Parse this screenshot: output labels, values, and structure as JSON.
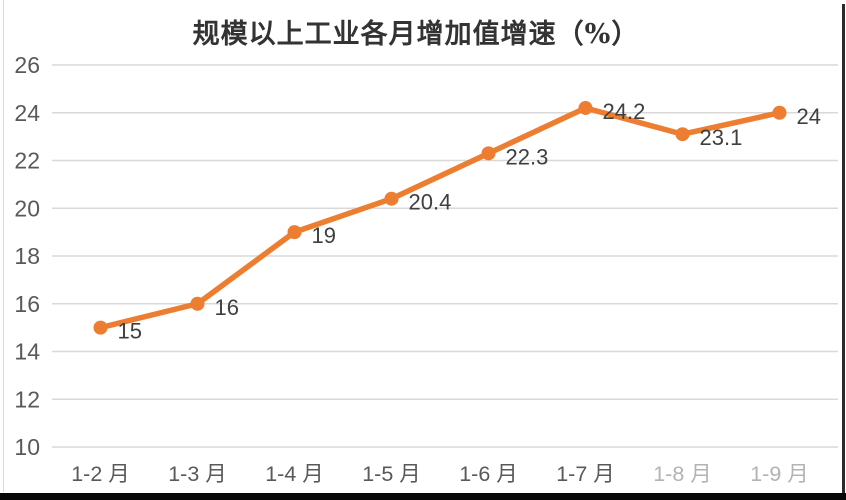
{
  "chart_data": {
    "type": "line",
    "title": "规模以上工业各月增加值增速（%）",
    "categories": [
      "1-2 月",
      "1-3 月",
      "1-4 月",
      "1-5 月",
      "1-6 月",
      "1-7 月",
      "1-8 月",
      "1-9 月"
    ],
    "values": [
      15,
      16,
      19,
      20.4,
      22.3,
      24.2,
      23.1,
      24
    ],
    "data_labels": [
      "15",
      "16",
      "19",
      "20.4",
      "22.3",
      "24.2",
      "23.1",
      "24"
    ],
    "xlabel": "",
    "ylabel": "",
    "ylim": [
      10,
      26
    ],
    "yticks": [
      26,
      24,
      22,
      20,
      18,
      16,
      14,
      12,
      10
    ],
    "grid": true,
    "legend": "none",
    "line_color": "#ED7D31",
    "marker": "circle",
    "gridline_color": "#D9D9D9",
    "ytick_label_color": "#595959",
    "xtick_label_color": "#595959",
    "data_label_color": "#3f3f3f",
    "faded_category_indices": [
      6,
      7
    ],
    "faded_label_color": "#b3b3b3",
    "title_color": "#333333"
  }
}
